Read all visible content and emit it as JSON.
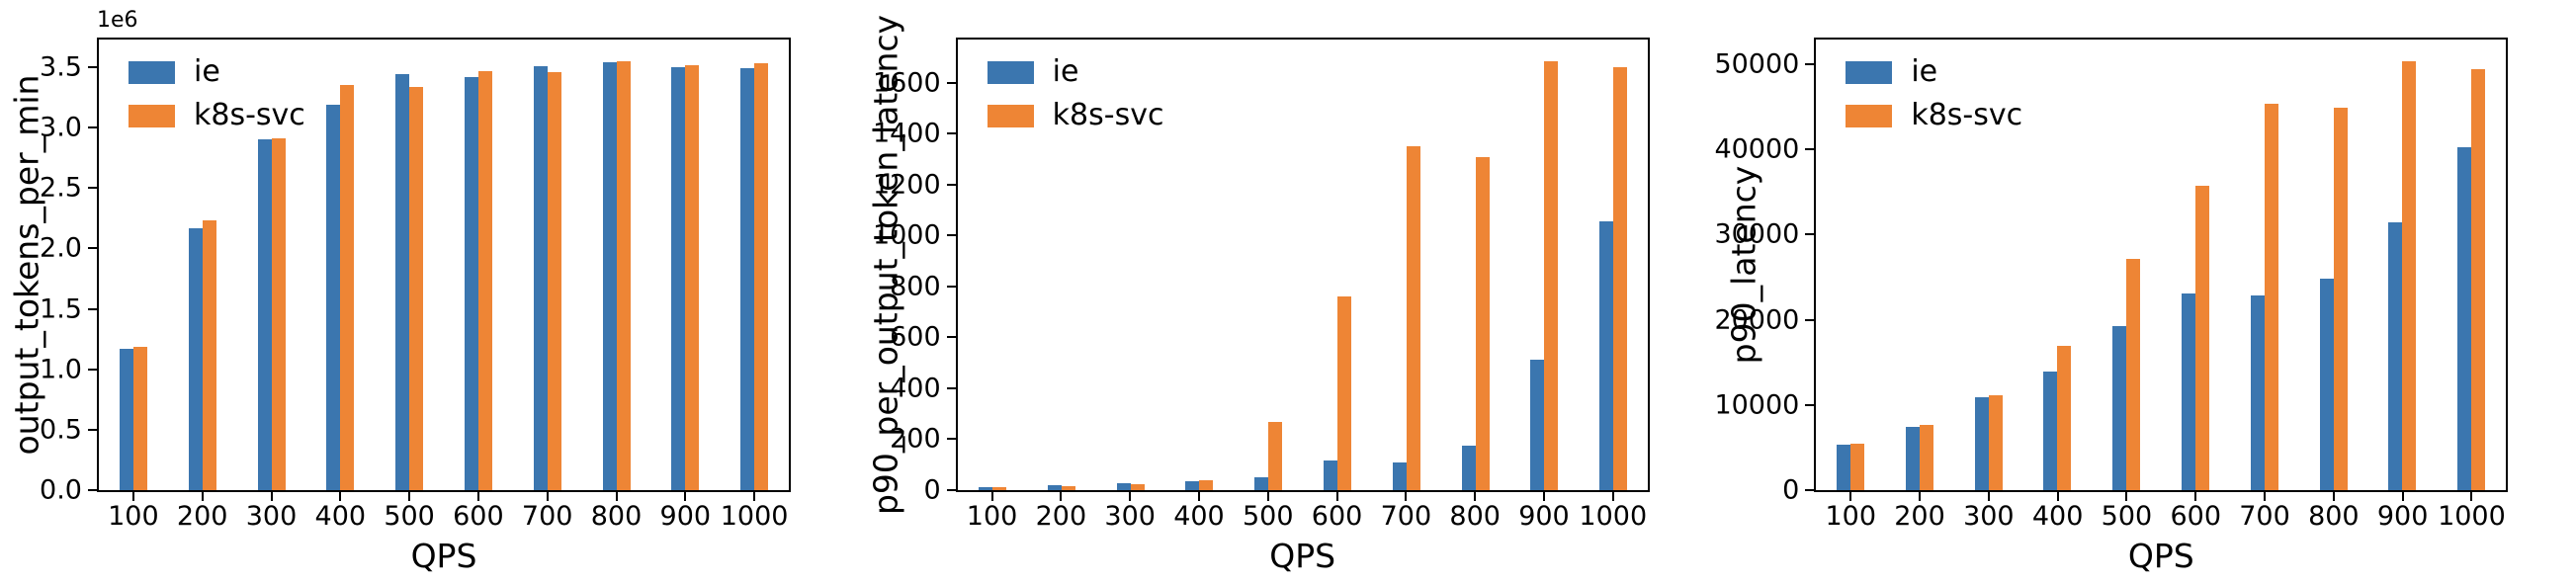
{
  "figure": {
    "background": "#ffffff",
    "axis_color": "#000000"
  },
  "chart_data": [
    {
      "type": "bar",
      "title": "",
      "ylabel": "output_tokens_per_min",
      "xlabel": "QPS",
      "offset_text": "1e6",
      "grid": false,
      "legend_position": "upper left",
      "categories": [
        "100",
        "200",
        "300",
        "400",
        "500",
        "600",
        "700",
        "800",
        "900",
        "1000"
      ],
      "series": [
        {
          "name": "ie",
          "color": "#3b76af",
          "values": [
            1170000,
            2170000,
            2900000,
            3190000,
            3440000,
            3420000,
            3510000,
            3540000,
            3500000,
            3490000
          ]
        },
        {
          "name": "k8s-svc",
          "color": "#ee8535",
          "values": [
            1190000,
            2230000,
            2910000,
            3350000,
            3340000,
            3470000,
            3460000,
            3550000,
            3520000,
            3530000
          ]
        }
      ],
      "ylim": [
        0,
        3730000
      ],
      "ytick_values": [
        0,
        500000,
        1000000,
        1500000,
        2000000,
        2500000,
        3000000,
        3500000
      ],
      "ytick_labels": [
        "0.0",
        "0.5",
        "1.0",
        "1.5",
        "2.0",
        "2.5",
        "3.0",
        "3.5"
      ]
    },
    {
      "type": "bar",
      "title": "",
      "ylabel": "p90_per_output_token_latency",
      "xlabel": "QPS",
      "offset_text": "",
      "grid": false,
      "legend_position": "upper left",
      "categories": [
        "100",
        "200",
        "300",
        "400",
        "500",
        "600",
        "700",
        "800",
        "900",
        "1000"
      ],
      "series": [
        {
          "name": "ie",
          "color": "#3b76af",
          "values": [
            10,
            18,
            26,
            35,
            50,
            118,
            110,
            176,
            512,
            1055
          ]
        },
        {
          "name": "k8s-svc",
          "color": "#ee8535",
          "values": [
            10,
            17,
            25,
            40,
            268,
            760,
            1350,
            1310,
            1685,
            1660
          ]
        }
      ],
      "ylim": [
        0,
        1770
      ],
      "ytick_values": [
        0,
        200,
        400,
        600,
        800,
        1000,
        1200,
        1400,
        1600
      ],
      "ytick_labels": [
        "0",
        "200",
        "400",
        "600",
        "800",
        "1000",
        "1200",
        "1400",
        "1600"
      ]
    },
    {
      "type": "bar",
      "title": "",
      "ylabel": "p90_latency",
      "xlabel": "QPS",
      "offset_text": "",
      "grid": false,
      "legend_position": "upper left",
      "categories": [
        "100",
        "200",
        "300",
        "400",
        "500",
        "600",
        "700",
        "800",
        "900",
        "1000"
      ],
      "series": [
        {
          "name": "ie",
          "color": "#3b76af",
          "values": [
            5300,
            7400,
            10950,
            13900,
            19300,
            23100,
            22900,
            24800,
            31400,
            40200
          ]
        },
        {
          "name": "k8s-svc",
          "color": "#ee8535",
          "values": [
            5500,
            7650,
            11150,
            16900,
            27200,
            35700,
            45400,
            44900,
            50400,
            49400
          ]
        }
      ],
      "ylim": [
        0,
        52900
      ],
      "ytick_values": [
        0,
        10000,
        20000,
        30000,
        40000,
        50000
      ],
      "ytick_labels": [
        "0",
        "10000",
        "20000",
        "30000",
        "40000",
        "50000"
      ]
    }
  ]
}
